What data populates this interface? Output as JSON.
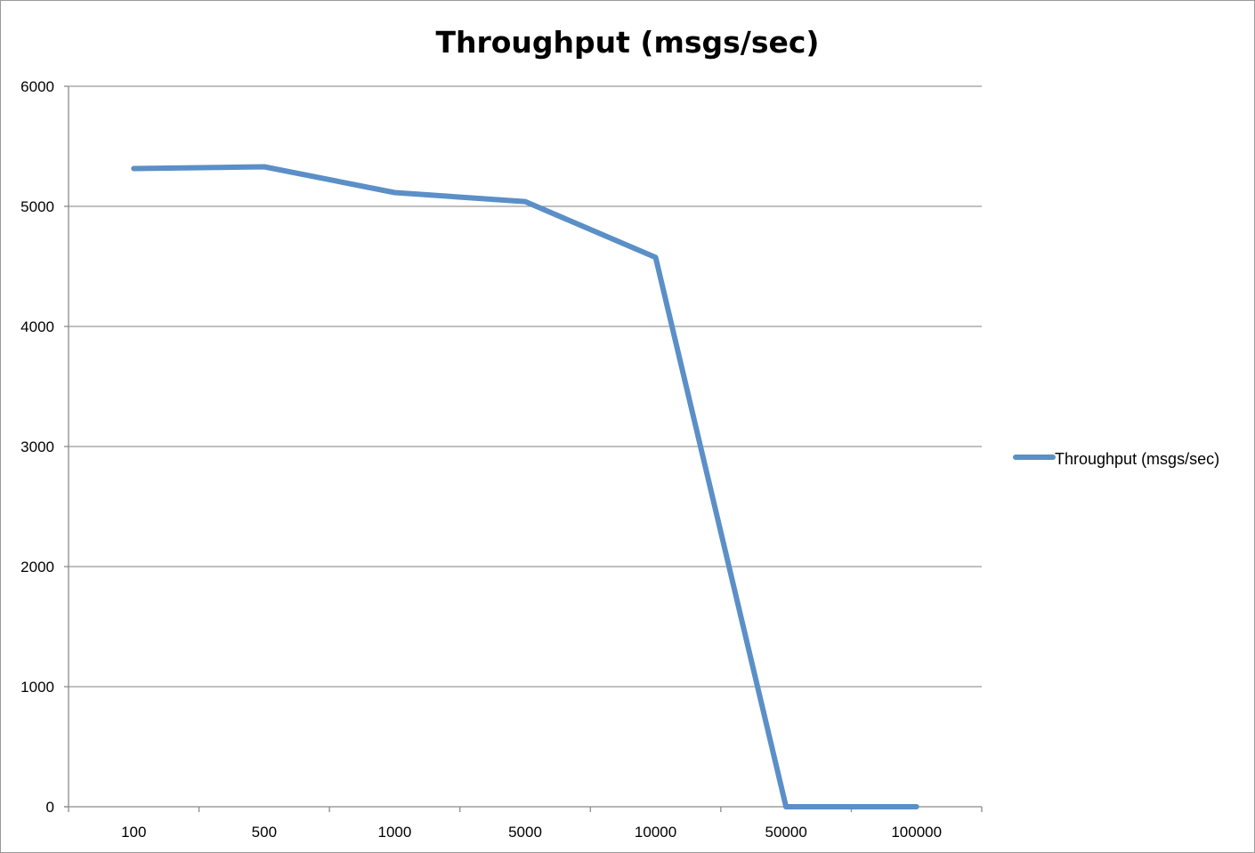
{
  "chart_data": {
    "type": "line",
    "title": "Throughput (msgs/sec)",
    "xlabel": "",
    "ylabel": "",
    "categories": [
      "100",
      "500",
      "1000",
      "5000",
      "10000",
      "50000",
      "100000"
    ],
    "series": [
      {
        "name": "Throughput (msgs/sec)",
        "values": [
          5315,
          5330,
          5115,
          5040,
          4575,
          0,
          0
        ],
        "color": "#5b8fc7"
      }
    ],
    "ylim": [
      0,
      6000
    ],
    "yticks": [
      "0",
      "1000",
      "2000",
      "3000",
      "4000",
      "5000",
      "6000"
    ],
    "grid": true,
    "legend": "right"
  }
}
